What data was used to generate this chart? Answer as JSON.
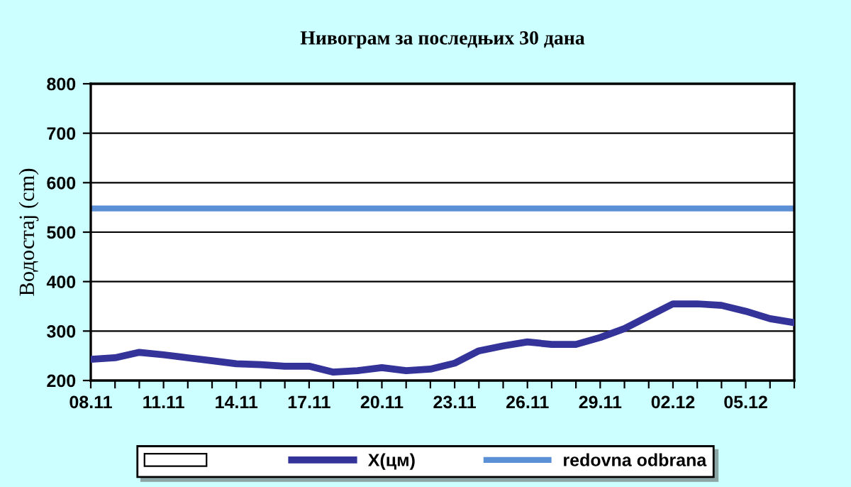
{
  "chart_data": {
    "type": "line",
    "title": "Нивограм за последњих 30 дана",
    "ylabel": "Водостај (cm)",
    "categories": [
      "08.11",
      null,
      null,
      "11.11",
      null,
      null,
      "14.11",
      null,
      null,
      "17.11",
      null,
      null,
      "20.11",
      null,
      null,
      "23.11",
      null,
      null,
      "26.11",
      null,
      null,
      "29.11",
      null,
      null,
      "02.12",
      null,
      null,
      "05.12",
      null,
      null
    ],
    "series": [
      {
        "name": "X(цм)",
        "color": "#333399",
        "values": [
          243,
          246,
          257,
          252,
          246,
          240,
          234,
          232,
          229,
          229,
          217,
          220,
          226,
          220,
          223,
          235,
          260,
          270,
          278,
          273,
          273,
          287,
          305,
          330,
          355,
          355,
          352,
          340,
          325,
          317
        ]
      }
    ],
    "ref_lines": [
      {
        "axis": "y",
        "value": 548,
        "label": "redovna odbrana",
        "color": "#5b8fd6",
        "line_style": "solid"
      }
    ],
    "ylim": [
      200,
      800
    ],
    "yticks": [
      200,
      300,
      400,
      500,
      600,
      700,
      800
    ],
    "grid": "y",
    "legend": "bottom",
    "marker": "none",
    "line_style": "solid"
  }
}
